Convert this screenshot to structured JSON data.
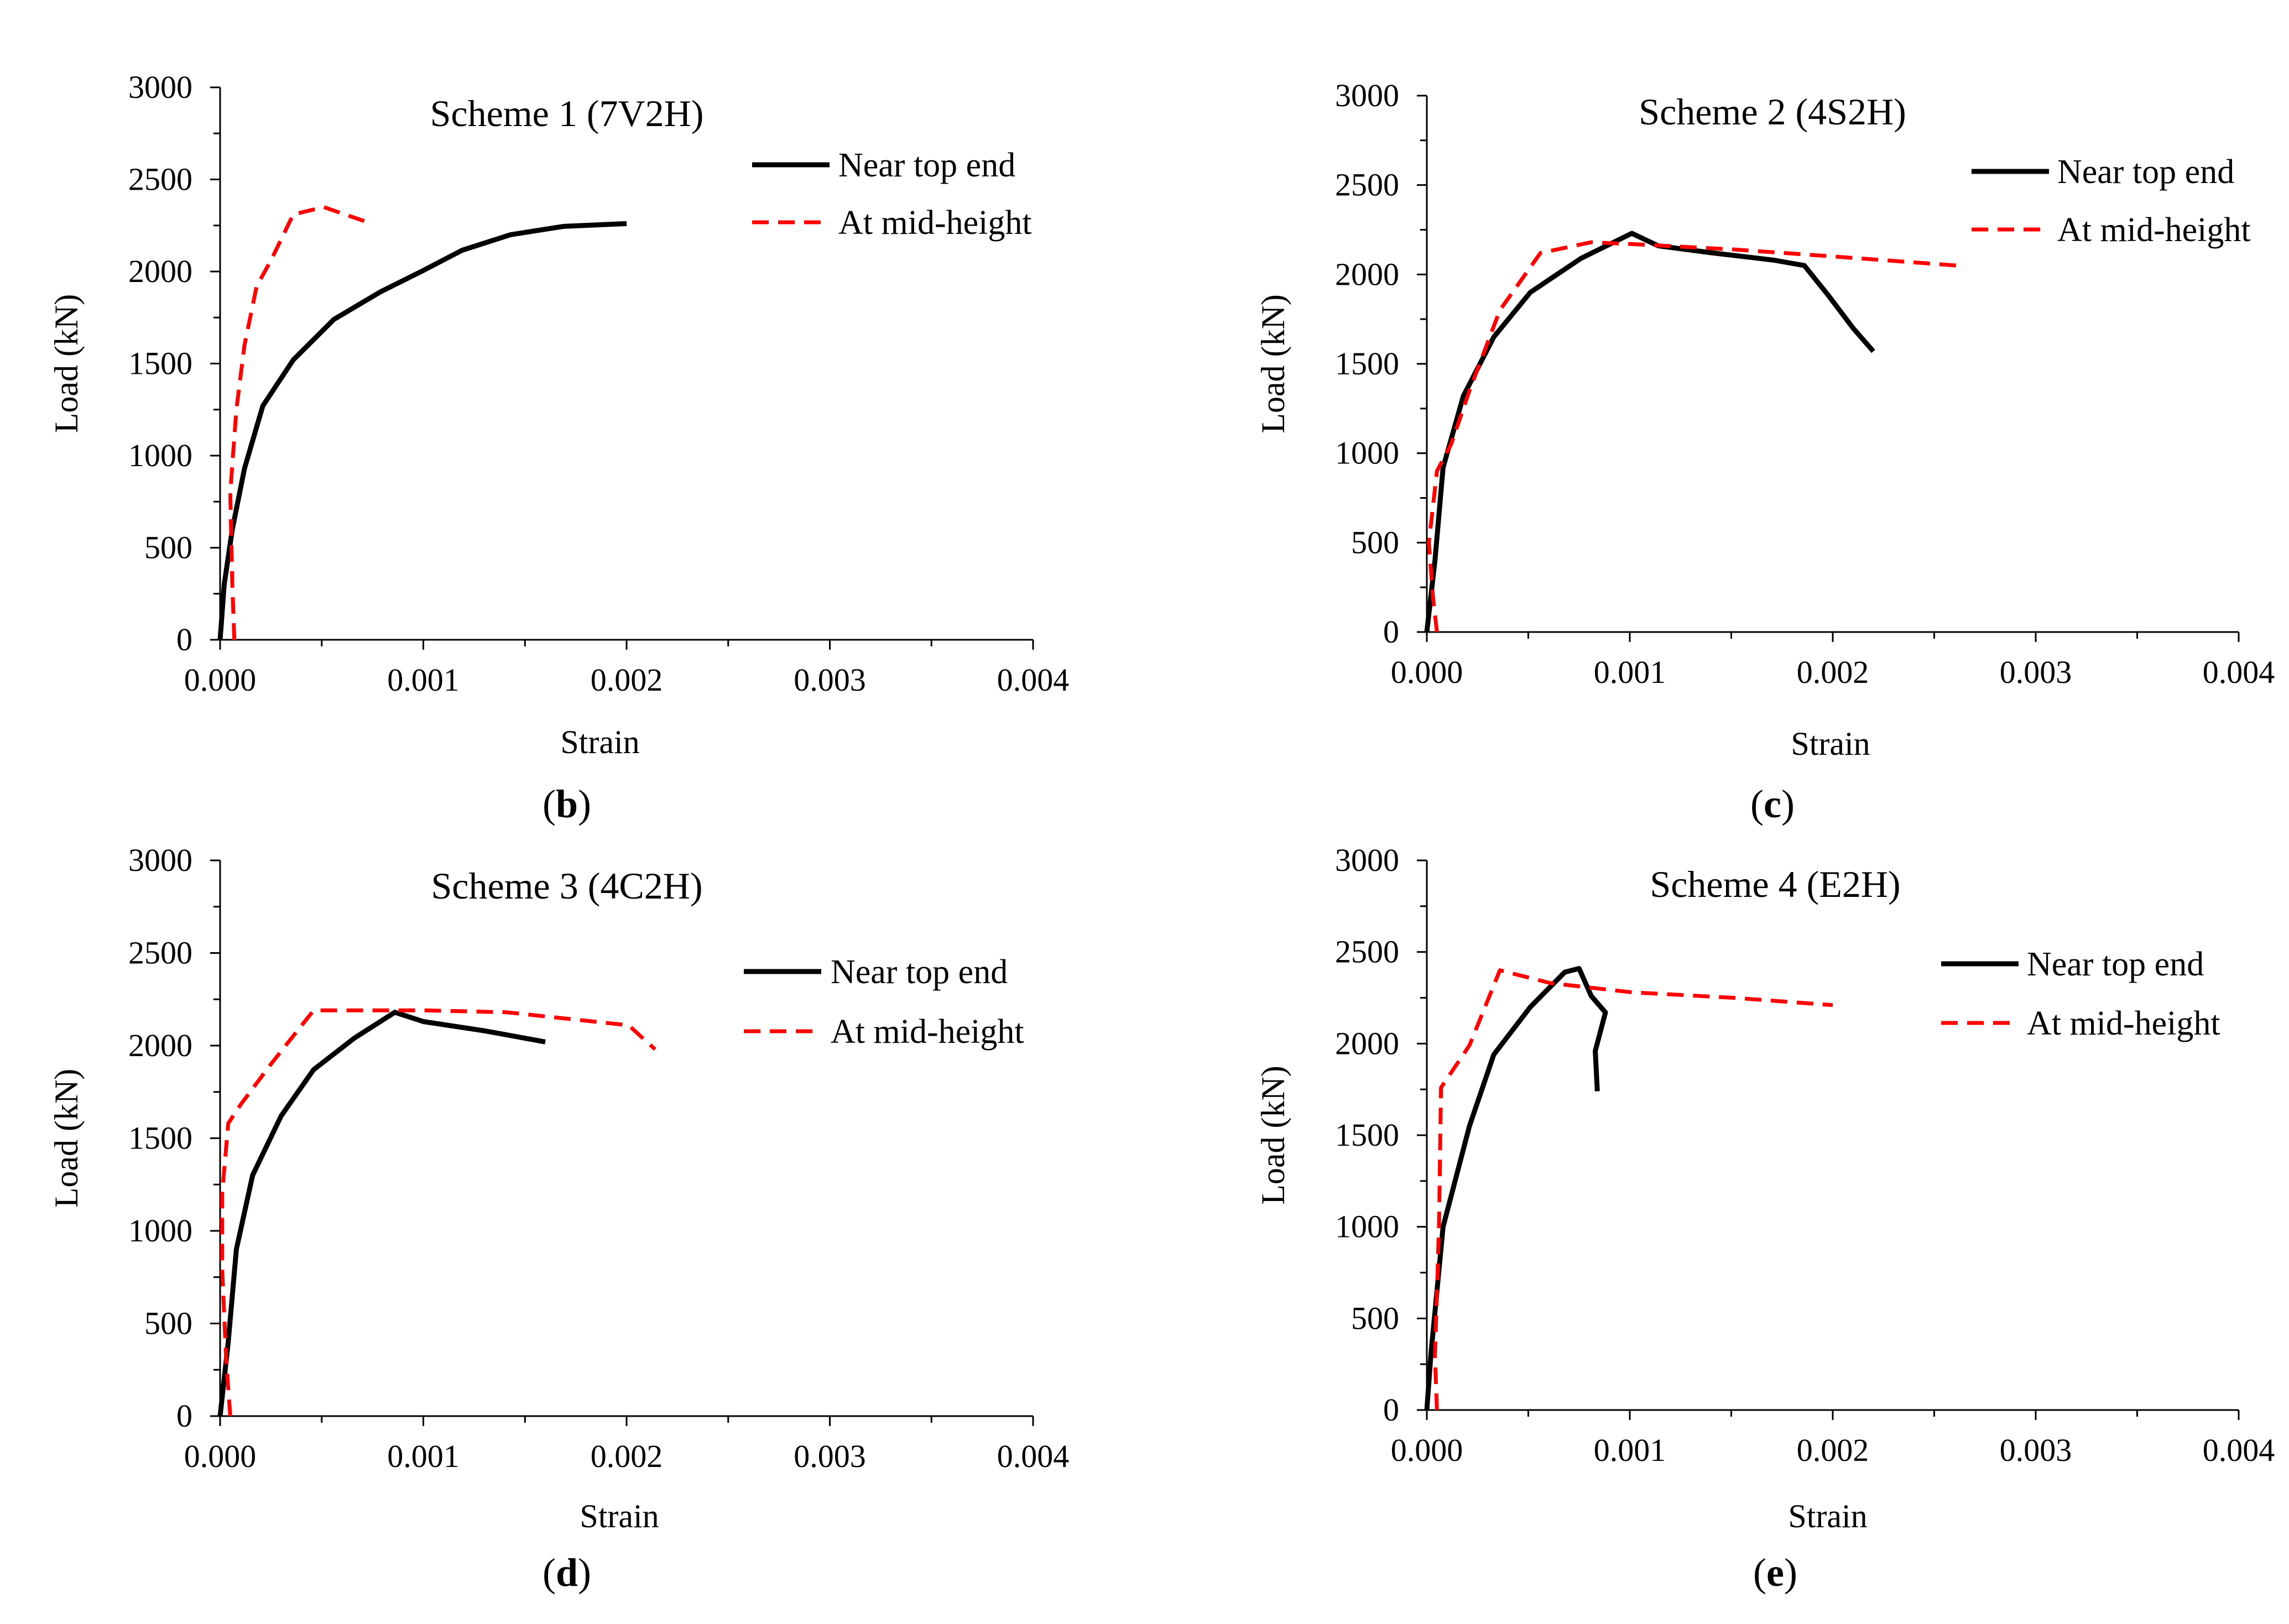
{
  "figure": {
    "series_names": [
      "Near top end",
      "At mid-height"
    ],
    "colors": {
      "near_top": "#000000",
      "mid_height": "#ff0000"
    }
  },
  "chart_data": [
    {
      "type": "line",
      "panel": "b",
      "title": "Scheme 1 (7V2H)",
      "xlabel": "Strain",
      "ylabel": "Load (kN)",
      "xlim": [
        0,
        0.004
      ],
      "ylim": [
        0,
        3000
      ],
      "xticks": [
        "0.000",
        "0.001",
        "0.002",
        "0.003",
        "0.004"
      ],
      "yticks": [
        "0",
        "500",
        "1000",
        "1500",
        "2000",
        "2500",
        "3000"
      ],
      "legend_position": "top-right",
      "series": [
        {
          "name": "Near top end",
          "x": [
            0,
            2e-05,
            6e-05,
            0.00012,
            0.00021,
            0.00036,
            0.00056,
            0.00079,
            0.00099,
            0.00119,
            0.00143,
            0.00169,
            0.002
          ],
          "y": [
            0,
            300,
            600,
            930,
            1270,
            1520,
            1740,
            1890,
            2000,
            2115,
            2200,
            2245,
            2260
          ]
        },
        {
          "name": "At mid-height",
          "x": [
            7e-05,
            6e-05,
            5e-05,
            8e-05,
            0.00012,
            0.00018,
            0.00025,
            0.00036,
            0.00051,
            0.00064,
            0.00072
          ],
          "y": [
            0,
            300,
            800,
            1250,
            1600,
            1920,
            2060,
            2310,
            2350,
            2300,
            2270
          ]
        }
      ]
    },
    {
      "type": "line",
      "panel": "c",
      "title": "Scheme 2 (4S2H)",
      "xlabel": "Strain",
      "ylabel": "Load (kN)",
      "xlim": [
        0,
        0.004
      ],
      "ylim": [
        0,
        3000
      ],
      "xticks": [
        "0.000",
        "0.001",
        "0.002",
        "0.003",
        "0.004"
      ],
      "yticks": [
        "0",
        "500",
        "1000",
        "1500",
        "2000",
        "2500",
        "3000"
      ],
      "legend_position": "top-right",
      "series": [
        {
          "name": "Near top end",
          "x": [
            0,
            4e-05,
            8e-05,
            0.00018,
            0.00033,
            0.00051,
            0.00076,
            0.00101,
            0.00114,
            0.00141,
            0.00171,
            0.00186,
            0.00198,
            0.0021,
            0.0022
          ],
          "y": [
            0,
            400,
            920,
            1320,
            1650,
            1900,
            2090,
            2230,
            2160,
            2120,
            2080,
            2050,
            1880,
            1700,
            1570
          ]
        },
        {
          "name": "At mid-height",
          "x": [
            5e-05,
            3e-05,
            1e-05,
            5e-05,
            0.00012,
            0.00021,
            0.00036,
            0.00056,
            0.00081,
            0.00101,
            0.00151,
            0.00201,
            0.00261
          ],
          "y": [
            0,
            200,
            500,
            900,
            1050,
            1350,
            1800,
            2120,
            2180,
            2170,
            2140,
            2100,
            2050
          ]
        }
      ]
    },
    {
      "type": "line",
      "panel": "d",
      "title": "Scheme 3 (4C2H)",
      "xlabel": "Strain",
      "ylabel": "Load (kN)",
      "xlim": [
        0,
        0.004
      ],
      "ylim": [
        0,
        3000
      ],
      "xticks": [
        "0.000",
        "0.001",
        "0.002",
        "0.003",
        "0.004"
      ],
      "yticks": [
        "0",
        "500",
        "1000",
        "1500",
        "2000",
        "2500",
        "3000"
      ],
      "legend_position": "top-right",
      "series": [
        {
          "name": "Near top end",
          "x": [
            0,
            4e-05,
            8e-05,
            0.00016,
            0.0003,
            0.00046,
            0.00066,
            0.00086,
            0.001,
            0.0013,
            0.0016
          ],
          "y": [
            0,
            400,
            900,
            1300,
            1620,
            1870,
            2040,
            2180,
            2130,
            2080,
            2020
          ]
        },
        {
          "name": "At mid-height",
          "x": [
            5e-05,
            3e-05,
            1e-05,
            1e-05,
            4e-05,
            0.0001,
            0.00025,
            0.00046,
            0.00066,
            0.00101,
            0.00141,
            0.00201,
            0.00214
          ],
          "y": [
            0,
            300,
            800,
            1200,
            1580,
            1680,
            1900,
            2190,
            2190,
            2190,
            2180,
            2110,
            1980
          ]
        }
      ]
    },
    {
      "type": "line",
      "panel": "e",
      "title": "Scheme 4 (E2H)",
      "xlabel": "Strain",
      "ylabel": "Load (kN)",
      "xlim": [
        0,
        0.004
      ],
      "ylim": [
        0,
        3000
      ],
      "xticks": [
        "0.000",
        "0.001",
        "0.002",
        "0.003",
        "0.004"
      ],
      "yticks": [
        "0",
        "500",
        "1000",
        "1500",
        "2000",
        "2500",
        "3000"
      ],
      "legend_position": "top-right",
      "series": [
        {
          "name": "Near top end",
          "x": [
            0,
            2e-05,
            8e-05,
            0.00021,
            0.00033,
            0.00051,
            0.00068,
            0.00075,
            0.00081,
            0.00088,
            0.00083,
            0.00084
          ],
          "y": [
            0,
            300,
            1000,
            1550,
            1940,
            2200,
            2390,
            2410,
            2260,
            2170,
            1960,
            1740
          ]
        },
        {
          "name": "At mid-height",
          "x": [
            5e-05,
            4e-05,
            6e-05,
            7e-05,
            0.00021,
            0.00036,
            0.00061,
            0.00101,
            0.00151,
            0.002
          ],
          "y": [
            0,
            300,
            1000,
            1760,
            1990,
            2400,
            2330,
            2280,
            2250,
            2210
          ]
        }
      ]
    }
  ],
  "panel_labels": [
    "b",
    "c",
    "d",
    "e"
  ]
}
